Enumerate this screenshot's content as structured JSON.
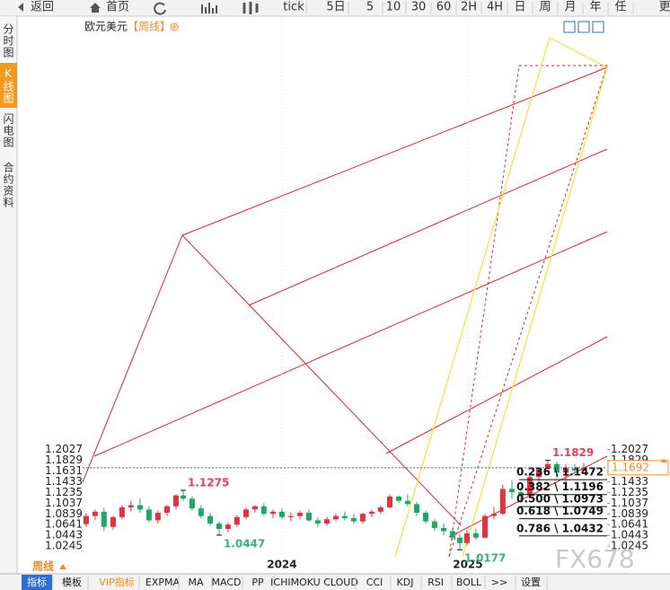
{
  "toolbar": {
    "items": [
      "返回",
      "首页",
      "tick",
      "5日",
      "5",
      "10",
      "30",
      "60",
      "2H",
      "4H",
      "日",
      "周",
      "月",
      "年",
      "任",
      "更"
    ]
  },
  "sidebar": {
    "items": [
      "分时图",
      "K线图",
      "闪电图",
      "合约资料"
    ]
  },
  "chart_data": {
    "type": "candlestick",
    "title": "欧元美元",
    "subtitle": "【周线】",
    "x": [
      2022.947,
      2022.995,
      2023.043,
      2023.092,
      2023.14,
      2023.188,
      2023.237,
      2023.285,
      2023.333,
      2023.382,
      2023.43,
      2023.469,
      2023.517,
      2023.565,
      2023.614,
      2023.662,
      2023.71,
      2023.758,
      2023.807,
      2023.855,
      2023.903,
      2023.952,
      2024.0,
      2024.048,
      2024.097,
      2024.145,
      2024.193,
      2024.242,
      2024.29,
      2024.338,
      2024.386,
      2024.435,
      2024.483,
      2024.531,
      2024.58,
      2024.628,
      2024.676,
      2024.725,
      2024.773,
      2024.821,
      2024.87,
      2024.918,
      2024.957,
      2024.995,
      2025.043,
      2025.092,
      2025.14,
      2025.188,
      2025.237,
      2025.285,
      2025.333,
      2025.382,
      2025.43,
      2025.478,
      2025.527,
      2025.575,
      2025.623
    ],
    "open": [
      1.065,
      1.08,
      1.088,
      1.06,
      1.078,
      1.096,
      1.1,
      1.092,
      1.072,
      1.086,
      1.098,
      1.118,
      1.112,
      1.094,
      1.08,
      1.066,
      1.056,
      1.064,
      1.078,
      1.092,
      1.098,
      1.084,
      1.088,
      1.078,
      1.08,
      1.086,
      1.072,
      1.066,
      1.074,
      1.08,
      1.076,
      1.07,
      1.084,
      1.088,
      1.096,
      1.116,
      1.108,
      1.102,
      1.086,
      1.07,
      1.058,
      1.052,
      1.04,
      1.03,
      1.048,
      1.04,
      1.08,
      1.084,
      1.13,
      1.124,
      1.118,
      1.152,
      1.168,
      1.176,
      1.16,
      1.168,
      1.164
    ],
    "high": [
      1.085,
      1.092,
      1.095,
      1.08,
      1.1,
      1.108,
      1.112,
      1.098,
      1.09,
      1.1,
      1.12,
      1.1275,
      1.116,
      1.1,
      1.086,
      1.07,
      1.068,
      1.082,
      1.096,
      1.1,
      1.104,
      1.092,
      1.094,
      1.086,
      1.09,
      1.092,
      1.078,
      1.078,
      1.084,
      1.088,
      1.084,
      1.086,
      1.092,
      1.1,
      1.12,
      1.118,
      1.12,
      1.106,
      1.09,
      1.074,
      1.066,
      1.058,
      1.046,
      1.054,
      1.056,
      1.084,
      1.096,
      1.138,
      1.146,
      1.132,
      1.16,
      1.17,
      1.1829,
      1.18,
      1.176,
      1.176,
      1.178
    ],
    "low": [
      1.06,
      1.072,
      1.052,
      1.055,
      1.074,
      1.088,
      1.086,
      1.068,
      1.066,
      1.08,
      1.092,
      1.108,
      1.09,
      1.076,
      1.062,
      1.0447,
      1.05,
      1.06,
      1.074,
      1.086,
      1.08,
      1.076,
      1.074,
      1.07,
      1.074,
      1.07,
      1.06,
      1.062,
      1.07,
      1.072,
      1.066,
      1.066,
      1.078,
      1.084,
      1.094,
      1.104,
      1.098,
      1.08,
      1.066,
      1.052,
      1.044,
      1.036,
      1.0177,
      1.026,
      1.036,
      1.038,
      1.074,
      1.082,
      1.112,
      1.108,
      1.114,
      1.142,
      1.16,
      1.15,
      1.14,
      1.158,
      1.16
    ],
    "close": [
      1.08,
      1.088,
      1.06,
      1.078,
      1.096,
      1.1,
      1.092,
      1.072,
      1.086,
      1.098,
      1.118,
      1.112,
      1.094,
      1.08,
      1.066,
      1.056,
      1.064,
      1.078,
      1.092,
      1.098,
      1.084,
      1.088,
      1.078,
      1.08,
      1.086,
      1.072,
      1.066,
      1.074,
      1.08,
      1.076,
      1.07,
      1.084,
      1.088,
      1.096,
      1.116,
      1.108,
      1.102,
      1.086,
      1.07,
      1.058,
      1.052,
      1.04,
      1.03,
      1.048,
      1.04,
      1.08,
      1.084,
      1.13,
      1.124,
      1.118,
      1.152,
      1.168,
      1.176,
      1.16,
      1.168,
      1.164,
      1.1692
    ],
    "up_color": "#e3323f",
    "down_color": "#1fa864",
    "xlim": [
      2022.928,
      2025.749
    ],
    "ylim": [
      1.0047,
      2.0
    ],
    "xticks": [
      2024,
      2025
    ],
    "yticks": [
      1.2027,
      1.1829,
      1.1631,
      1.1433,
      1.1235,
      1.1037,
      1.0839,
      1.0641,
      1.0443,
      1.0245
    ],
    "current_price": 1.1692,
    "annotations": [
      {
        "x": 2023.469,
        "value": 1.1275,
        "color": "#e0405a"
      },
      {
        "x": 2023.662,
        "value": 1.0447,
        "color": "#3bb27a"
      },
      {
        "x": 2024.957,
        "value": 1.0177,
        "color": "#3bb27a"
      },
      {
        "x": 2025.43,
        "value": 1.1829,
        "color": "#e0405a"
      }
    ],
    "fib_levels": [
      {
        "value": 1.1472,
        "label": "0.236 \\ 1.1472"
      },
      {
        "value": 1.1196,
        "label": "0.382 \\ 1.1196"
      },
      {
        "value": 1.0973,
        "label": "0.500 \\ 1.0973"
      },
      {
        "value": 1.0749,
        "label": "0.618 \\ 1.0749"
      },
      {
        "value": 1.0432,
        "label": "0.786 \\ 1.0432"
      }
    ]
  },
  "bottom_bar": {
    "period": "周线",
    "items": [
      "指标",
      "模板",
      "VIP指标",
      "EXPMA",
      "MA",
      "MACD",
      "PP",
      "ICHIMOKU CLOUD",
      "CCI",
      "KDJ",
      "RSI",
      "BOLL",
      ">>",
      "设置"
    ]
  },
  "watermark": "FX678"
}
